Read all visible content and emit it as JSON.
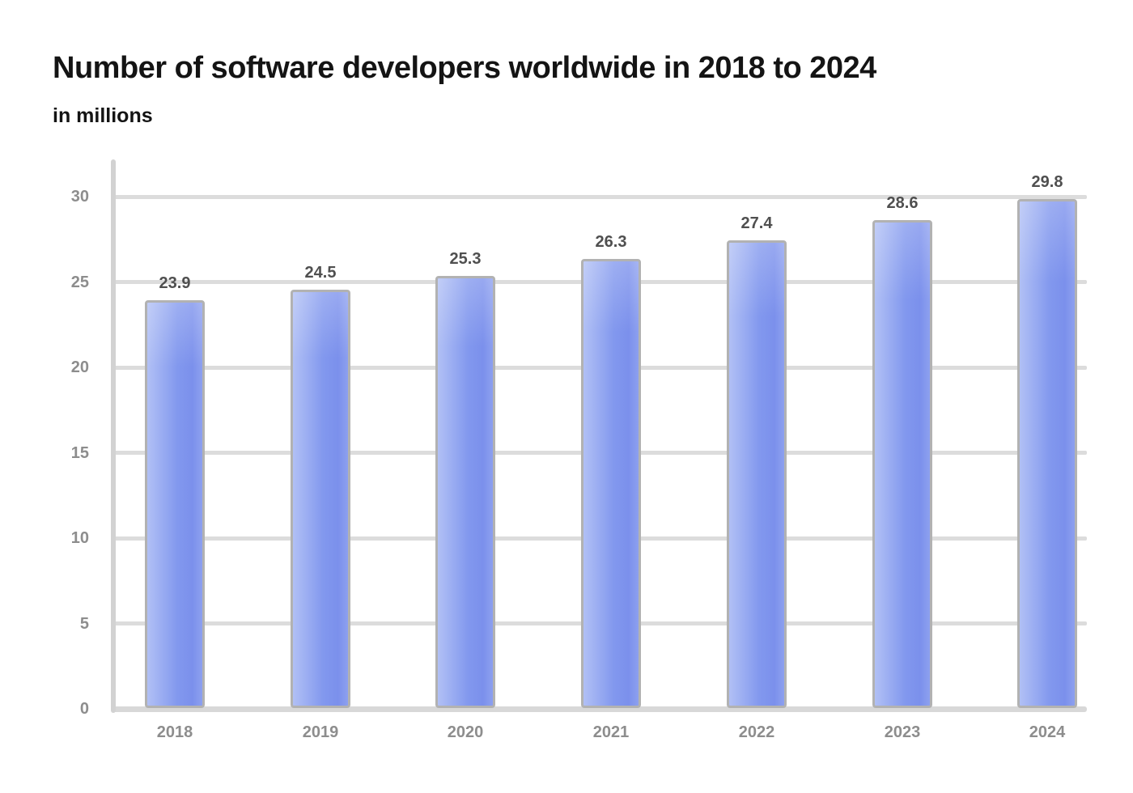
{
  "chart_data": {
    "type": "bar",
    "title": "Number of software developers worldwide in 2018 to 2024",
    "subtitle": "in millions",
    "categories": [
      "2018",
      "2019",
      "2020",
      "2021",
      "2022",
      "2023",
      "2024"
    ],
    "values": [
      23.9,
      24.5,
      25.3,
      26.3,
      27.4,
      28.6,
      29.8
    ],
    "value_labels": [
      "23.9",
      "24.5",
      "25.3",
      "26.3",
      "27.4",
      "28.6",
      "29.8"
    ],
    "xlabel": "",
    "ylabel": "",
    "ylim": [
      0,
      30
    ],
    "yticks": [
      0,
      5,
      10,
      15,
      20,
      25,
      30
    ],
    "grid": true,
    "legend": false,
    "colors": {
      "background": "#ffffff",
      "title": "#141414",
      "bar_gradient_left": "#b1c0f5",
      "bar_gradient_mid": "#8298ee",
      "bar_gradient_dark": "#7b90ec",
      "bar_gradient_right": "#8da0ef",
      "bar_border": "#b2b2b2",
      "gridline": "#dcdcdc",
      "axis_line": "#d2d2d2",
      "baseline": "#d8d8d8",
      "tick_label": "#8d8d8d",
      "value_label": "#4f4f4f"
    }
  }
}
